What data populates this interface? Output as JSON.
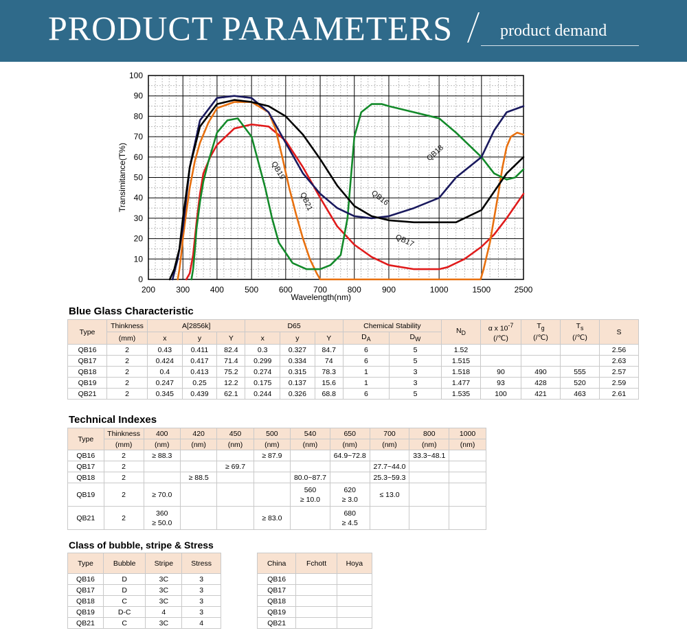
{
  "banner": {
    "title": "PRODUCT PARAMETERS",
    "separator": "/",
    "subtitle": "product demand",
    "color": "#2f6a8a"
  },
  "chart_data": {
    "type": "line",
    "title": "",
    "xlabel": "Wavelength(nm)",
    "ylabel": "Transimitance(T%)",
    "x_ticks": [
      200,
      300,
      400,
      500,
      600,
      700,
      800,
      900,
      1000,
      1500,
      2500
    ],
    "y_ticks": [
      0,
      10,
      20,
      30,
      40,
      50,
      60,
      70,
      80,
      90,
      100
    ],
    "ylim": [
      0,
      100
    ],
    "grid": true,
    "series": [
      {
        "name": "QB16",
        "color": "#000000",
        "x": [
          262,
          275,
          290,
          300,
          320,
          350,
          400,
          450,
          500,
          550,
          600,
          650,
          700,
          750,
          800,
          850,
          900,
          950,
          1000,
          1200,
          1500,
          1800,
          2100,
          2500
        ],
        "y": [
          0,
          5,
          15,
          30,
          55,
          75,
          86,
          88,
          87,
          85,
          80,
          71,
          59,
          46,
          36,
          31,
          29,
          28,
          28,
          28,
          34,
          43,
          52,
          60
        ]
      },
      {
        "name": "QB17",
        "color": "#e01b1b",
        "x": [
          310,
          320,
          330,
          340,
          350,
          360,
          380,
          400,
          450,
          500,
          550,
          600,
          650,
          700,
          750,
          800,
          850,
          900,
          950,
          1000,
          1100,
          1300,
          1500,
          1800,
          2100,
          2500
        ],
        "y": [
          0,
          3,
          12,
          28,
          42,
          52,
          60,
          66,
          74,
          76,
          75,
          68,
          55,
          40,
          26,
          17,
          11,
          7,
          5,
          5,
          6,
          10,
          16,
          22,
          30,
          42
        ]
      },
      {
        "name": "QB18",
        "color": "#1a1a5e",
        "x": [
          270,
          285,
          300,
          320,
          350,
          400,
          450,
          500,
          550,
          600,
          650,
          700,
          750,
          800,
          850,
          900,
          950,
          1000,
          1200,
          1500,
          1800,
          2100,
          2500
        ],
        "y": [
          0,
          10,
          25,
          55,
          78,
          89,
          90,
          89,
          82,
          67,
          52,
          42,
          35,
          31,
          30,
          31,
          35,
          40,
          50,
          60,
          73,
          82,
          85
        ]
      },
      {
        "name": "QB19",
        "color": "#138a2a",
        "x": [
          325,
          330,
          335,
          340,
          350,
          360,
          375,
          400,
          430,
          460,
          500,
          540,
          560,
          580,
          620,
          660,
          700,
          730,
          760,
          780,
          790,
          800,
          820,
          850,
          880,
          900,
          950,
          1000,
          1200,
          1500,
          1800,
          2100,
          2300,
          2500
        ],
        "y": [
          0,
          5,
          14,
          25,
          38,
          48,
          58,
          72,
          78,
          79,
          70,
          45,
          30,
          18,
          8,
          5,
          5,
          7,
          12,
          30,
          50,
          70,
          82,
          86,
          86,
          85,
          82,
          79,
          72,
          60,
          52,
          49,
          50,
          54
        ]
      },
      {
        "name": "QB21",
        "color": "#e8700f",
        "x": [
          285,
          290,
          295,
          300,
          310,
          320,
          335,
          350,
          375,
          400,
          450,
          500,
          550,
          570,
          590,
          610,
          630,
          650,
          670,
          690,
          700,
          1490,
          1550,
          1700,
          1800,
          1900,
          2000,
          2100,
          2200,
          2350,
          2500
        ],
        "y": [
          0,
          5,
          12,
          20,
          33,
          45,
          58,
          67,
          77,
          84,
          87,
          87,
          82,
          74,
          60,
          45,
          32,
          20,
          10,
          3,
          0,
          0,
          5,
          18,
          30,
          42,
          55,
          65,
          70,
          72,
          71
        ]
      }
    ]
  },
  "blue_glass": {
    "title": "Blue Glass Characteristic",
    "head": {
      "type": "Type",
      "thinkness": "Thinkness",
      "mm": "(mm)",
      "a2856": "A[2856k]",
      "d65": "D65",
      "x": "x",
      "y": "y",
      "Y": "Y",
      "chem": "Chemical Stability",
      "da": "D",
      "da_sub": "A",
      "dw": "D",
      "dw_sub": "W",
      "nd": "N",
      "nd_sub": "D",
      "alpha": "α x 10",
      "alpha_sup": "-7",
      "unit": "(/℃)",
      "tg": "T",
      "tg_sub": "g",
      "ts": "T",
      "ts_sub": "s",
      "s": "S"
    },
    "rows": [
      [
        "QB16",
        "2",
        "0.43",
        "0.411",
        "82.4",
        "0.3",
        "0.327",
        "84.7",
        "6",
        "5",
        "1.52",
        "",
        "",
        "",
        "2.56"
      ],
      [
        "QB17",
        "2",
        "0.424",
        "0.417",
        "71.4",
        "0.299",
        "0.334",
        "74",
        "6",
        "5",
        "1.515",
        "",
        "",
        "",
        "2.63"
      ],
      [
        "QB18",
        "2",
        "0.4",
        "0.413",
        "75.2",
        "0.274",
        "0.315",
        "78.3",
        "1",
        "3",
        "1.518",
        "90",
        "490",
        "555",
        "2.57"
      ],
      [
        "QB19",
        "2",
        "0.247",
        "0.25",
        "12.2",
        "0.175",
        "0.137",
        "15.6",
        "1",
        "3",
        "1.477",
        "93",
        "428",
        "520",
        "2.59"
      ],
      [
        "QB21",
        "2",
        "0.345",
        "0.439",
        "62.1",
        "0.244",
        "0.326",
        "68.8",
        "6",
        "5",
        "1.535",
        "100",
        "421",
        "463",
        "2.61"
      ]
    ]
  },
  "tech": {
    "title": "Technical Indexes",
    "head": {
      "type": "Type",
      "thinkness": "Thinkness",
      "mm": "(mm)",
      "nm": "(nm)",
      "wavelengths": [
        "400",
        "420",
        "450",
        "500",
        "540",
        "650",
        "700",
        "800",
        "1000"
      ]
    },
    "rows": [
      {
        "type": "QB16",
        "t": "2",
        "cells": [
          [
            "≥ 88.3"
          ],
          [
            ""
          ],
          [
            ""
          ],
          [
            "≥ 87.9"
          ],
          [
            ""
          ],
          [
            "64.9~72.8"
          ],
          [
            ""
          ],
          [
            "33.3~48.1"
          ],
          [
            ""
          ]
        ]
      },
      {
        "type": "QB17",
        "t": "2",
        "cells": [
          [
            ""
          ],
          [
            ""
          ],
          [
            "≥ 69.7"
          ],
          [
            ""
          ],
          [
            ""
          ],
          [
            ""
          ],
          [
            "27.7~44.0"
          ],
          [
            ""
          ],
          [
            ""
          ]
        ]
      },
      {
        "type": "QB18",
        "t": "2",
        "cells": [
          [
            ""
          ],
          [
            "≥ 88.5"
          ],
          [
            ""
          ],
          [
            ""
          ],
          [
            "80.0~87.7"
          ],
          [
            ""
          ],
          [
            "25.3~59.3"
          ],
          [
            ""
          ],
          [
            ""
          ]
        ]
      },
      {
        "type": "QB19",
        "t": "2",
        "cells": [
          [
            "≥ 70.0"
          ],
          [
            ""
          ],
          [
            ""
          ],
          [
            ""
          ],
          [
            "560",
            "≥ 10.0"
          ],
          [
            "620",
            "≥ 3.0"
          ],
          [
            "≤ 13.0"
          ],
          [
            ""
          ],
          [
            ""
          ]
        ]
      },
      {
        "type": "QB21",
        "t": "2",
        "cells": [
          [
            "360",
            "≥ 50.0"
          ],
          [
            ""
          ],
          [
            ""
          ],
          [
            "≥ 83.0"
          ],
          [
            ""
          ],
          [
            "680",
            "≥ 4.5"
          ],
          [
            ""
          ],
          [
            ""
          ],
          [
            ""
          ]
        ]
      }
    ]
  },
  "bubble": {
    "title": "Class of bubble, stripe & Stress",
    "head": [
      "Type",
      "Bubble",
      "Stripe",
      "Stress"
    ],
    "rows": [
      [
        "QB16",
        "D",
        "3C",
        "3"
      ],
      [
        "QB17",
        "D",
        "3C",
        "3"
      ],
      [
        "QB18",
        "C",
        "3C",
        "3"
      ],
      [
        "QB19",
        "D-C",
        "4",
        "3"
      ],
      [
        "QB21",
        "C",
        "3C",
        "4"
      ]
    ]
  },
  "equiv": {
    "head": [
      "China",
      "Fchott",
      "Hoya"
    ],
    "rows": [
      [
        "QB16",
        "",
        ""
      ],
      [
        "QB17",
        "",
        ""
      ],
      [
        "QB18",
        "",
        ""
      ],
      [
        "QB19",
        "",
        ""
      ],
      [
        "QB21",
        "",
        ""
      ]
    ]
  }
}
